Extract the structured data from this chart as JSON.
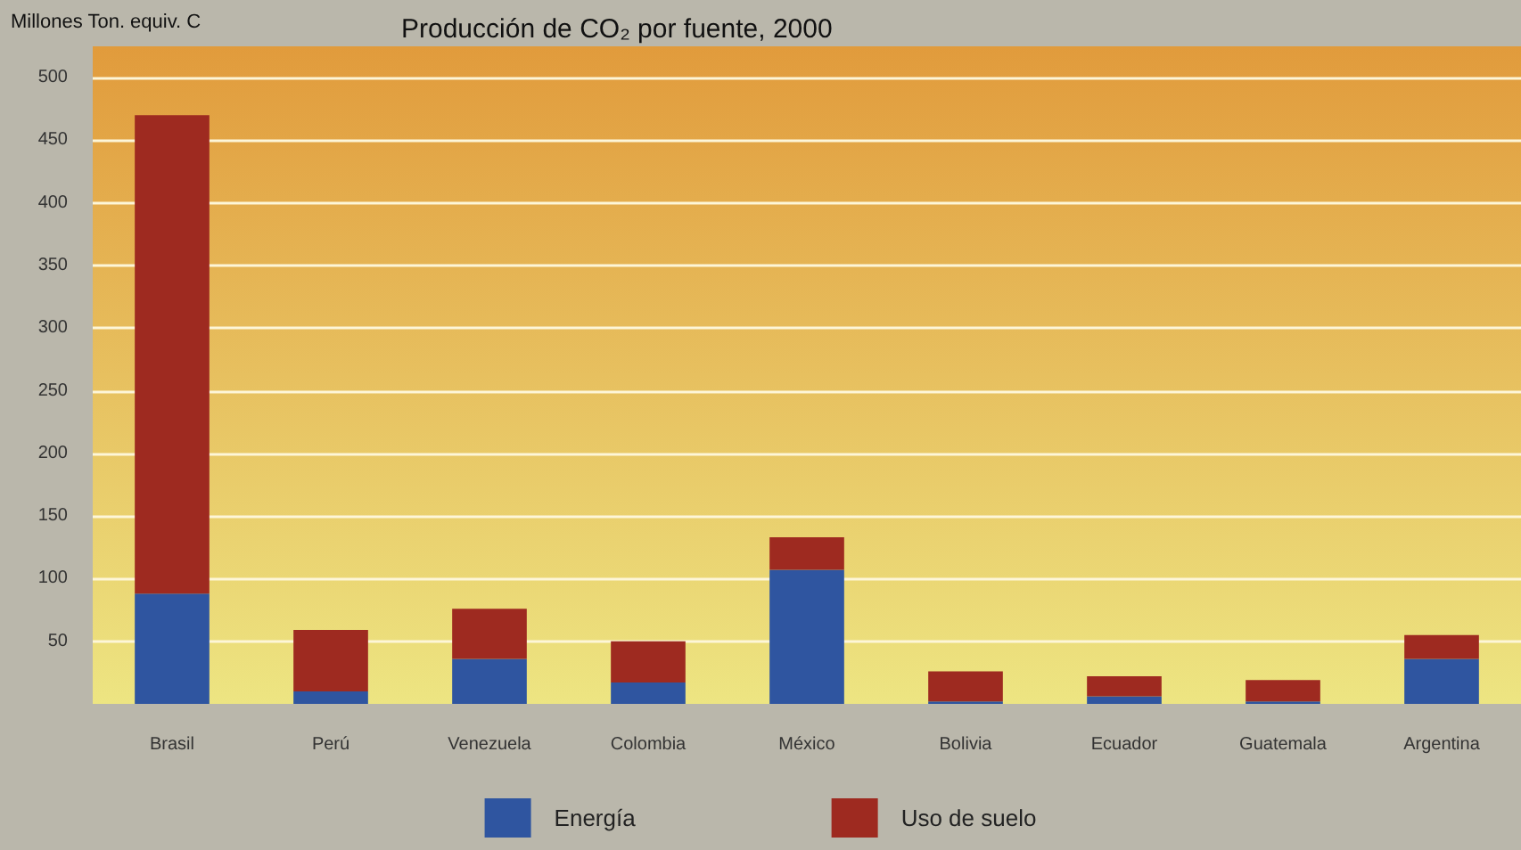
{
  "chart_data": {
    "type": "bar",
    "title": "Producción de CO₂ por fuente, 2000",
    "ylabel": "Millones Ton. equiv. C",
    "categories": [
      "Brasil",
      "Perú",
      "Venezuela",
      "Colombia",
      "México",
      "Bolivia",
      "Ecuador",
      "Guatemala",
      "Argentina"
    ],
    "series": [
      {
        "name": "Energía",
        "color": "#2f55a0",
        "values": [
          88,
          10,
          36,
          17,
          107,
          2,
          6,
          2,
          36
        ]
      },
      {
        "name": "Uso de suelo",
        "color": "#9e2a20",
        "values": [
          382,
          49,
          40,
          33,
          26,
          24,
          16,
          17,
          19
        ]
      }
    ],
    "stacked": true,
    "ylim": [
      0,
      525
    ],
    "yticks": [
      50,
      100,
      150,
      200,
      250,
      300,
      350,
      400,
      450,
      500
    ],
    "grid": true,
    "legend": "bottom"
  }
}
